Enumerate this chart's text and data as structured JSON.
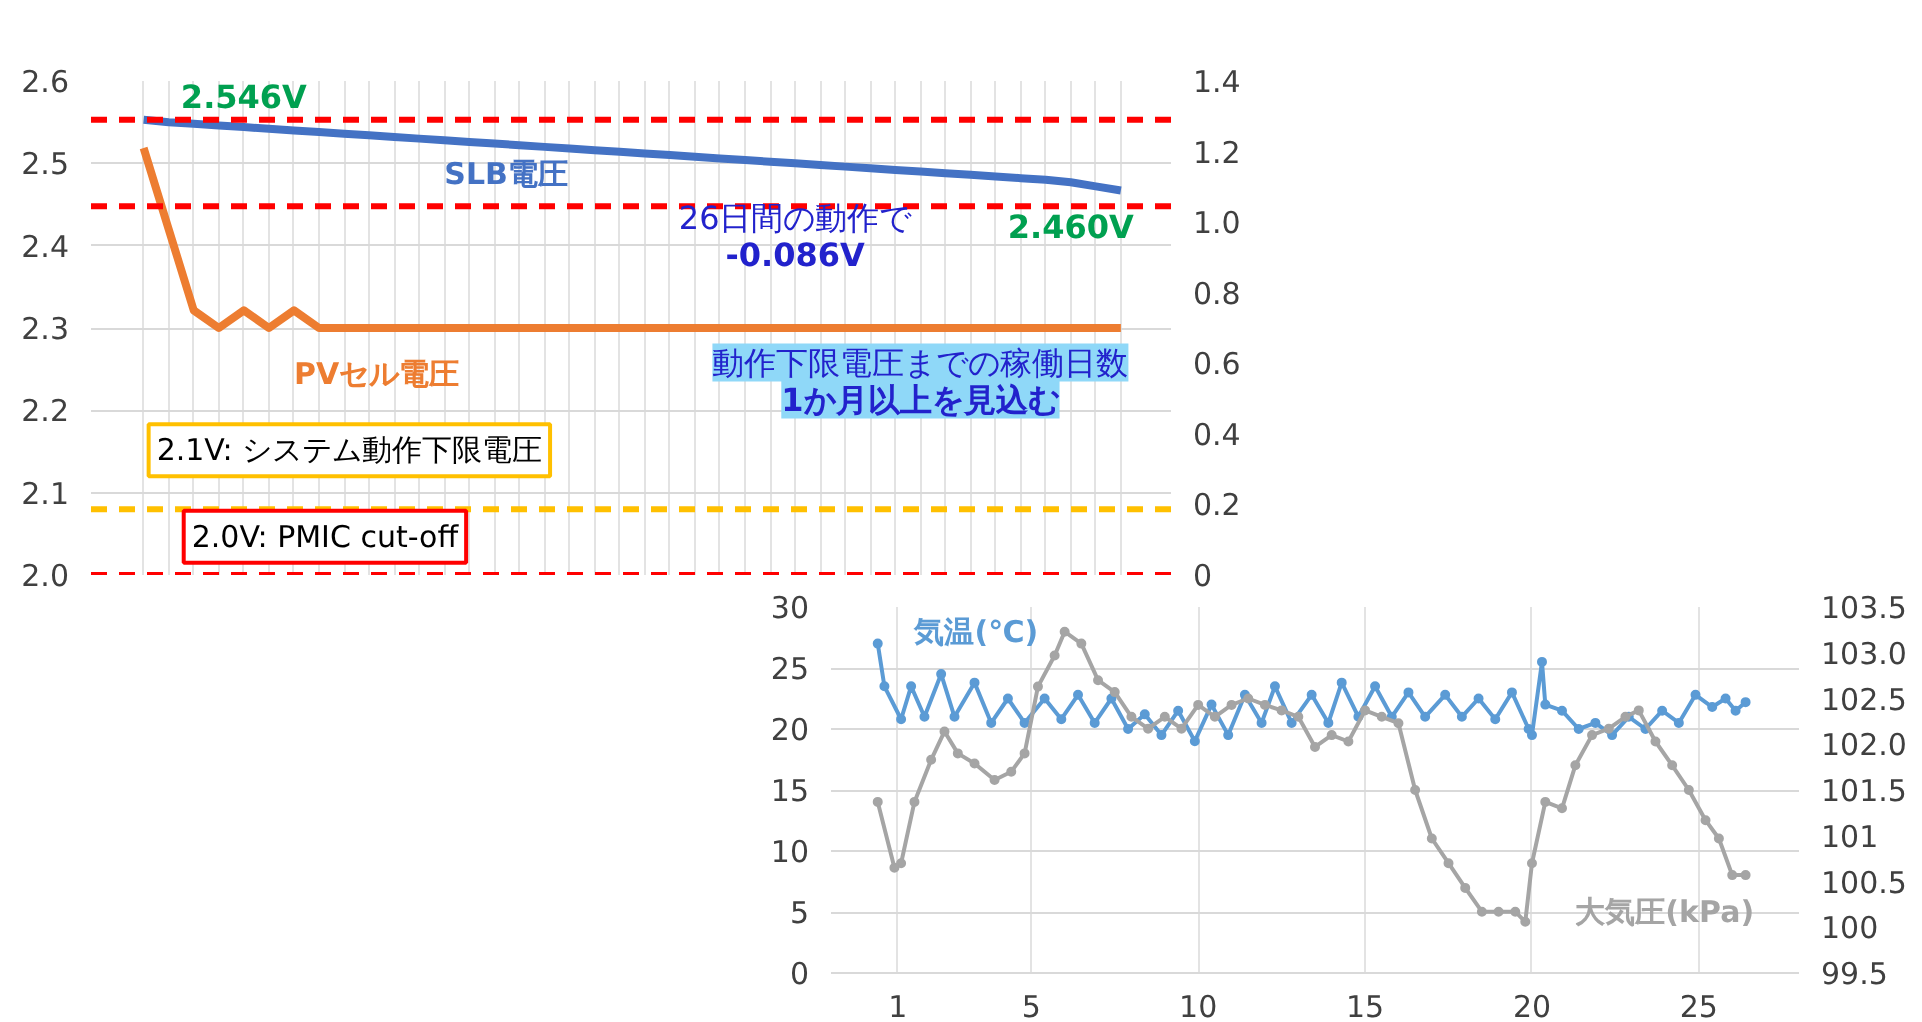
{
  "chart_data": [
    {
      "type": "line",
      "categories": [
        null,
        null,
        null,
        null,
        null,
        null,
        null,
        null,
        null,
        null,
        null,
        null,
        null,
        null,
        null,
        null,
        null,
        null,
        null,
        null,
        null,
        null,
        null,
        null,
        null,
        null,
        null,
        null,
        null,
        null,
        null,
        null,
        null,
        null,
        null,
        null,
        null,
        null,
        null,
        null
      ],
      "series": [
        {
          "name": "SLB電圧",
          "color": "#4472c4",
          "values": [
            2.553,
            2.55,
            2.548,
            2.546,
            2.544,
            2.542,
            2.54,
            2.538,
            2.536,
            2.534,
            2.532,
            2.53,
            2.528,
            2.526,
            2.524,
            2.522,
            2.52,
            2.518,
            2.516,
            2.514,
            2.512,
            2.51,
            2.508,
            2.506,
            2.504,
            2.502,
            2.5,
            2.498,
            2.496,
            2.494,
            2.492,
            2.49,
            2.488,
            2.486,
            2.484,
            2.482,
            2.48,
            2.477,
            2.472,
            2.467
          ]
        },
        {
          "name": "PVセル電圧",
          "color": "#ed7d31",
          "axis": "y2",
          "values": [
            1.21,
            0.98,
            0.75,
            0.7,
            0.75,
            0.7,
            0.75,
            0.7,
            0.7,
            0.7,
            0.7,
            0.7,
            0.7,
            0.7,
            0.7,
            0.7,
            0.7,
            0.7,
            0.7,
            0.7,
            0.7,
            0.7,
            0.7,
            0.7,
            0.7,
            0.7,
            0.7,
            0.7,
            0.7,
            0.7,
            0.7,
            0.7,
            0.7,
            0.7,
            0.7,
            0.7,
            0.7,
            0.7,
            0.7,
            0.7
          ]
        }
      ],
      "ylim": [
        2.0,
        2.6
      ],
      "yticks": [
        {
          "value": 2.0,
          "label": "2.0"
        },
        2.1,
        2.2,
        2.3,
        2.4,
        2.5,
        2.6
      ],
      "y2lim": [
        0,
        1.4
      ],
      "y2ticks": [
        0,
        0.2,
        0.4,
        0.6,
        0.8,
        {
          "value": 1.0,
          "label": "1.0"
        },
        1.2,
        1.4
      ],
      "ref_lines": [
        {
          "axis": "y",
          "value": 2.553,
          "color": "#ff0000",
          "line_style": "dashed"
        },
        {
          "axis": "y",
          "value": 2.448,
          "color": "#ff0000",
          "line_style": "dashed"
        },
        {
          "axis": "y",
          "value": 2.08,
          "label": "2.1V: システム動作下限電圧",
          "color": "#ffc000",
          "line_style": "dashed"
        },
        {
          "axis": "y",
          "value": 2.0,
          "label": "2.0V: PMIC cut-off",
          "color": "#ff0000",
          "line_style": "dashed"
        }
      ],
      "annotations": [
        "2.546V",
        "2.460V",
        "26日間の動作で\n-0.086V",
        "動作下限電圧までの稼働日数\n1か月以上を見込む"
      ],
      "grid": true,
      "tick_labels": "y",
      "marker": "none",
      "line_style": "solid"
    },
    {
      "type": "line",
      "series": [
        {
          "name": "気温(℃)",
          "color": "#5b9bd5",
          "x": [
            0.4,
            0.6,
            1.1,
            1.4,
            1.8,
            2.3,
            2.7,
            3.3,
            3.8,
            4.3,
            4.8,
            5.4,
            5.9,
            6.4,
            6.9,
            7.4,
            7.9,
            8.4,
            8.9,
            9.4,
            9.9,
            10.4,
            10.9,
            11.4,
            11.9,
            12.3,
            12.8,
            13.4,
            13.9,
            14.3,
            14.8,
            15.3,
            15.8,
            16.3,
            16.8,
            17.4,
            17.9,
            18.4,
            18.9,
            19.4,
            19.9,
            20.0,
            20.3,
            20.4,
            20.9,
            21.4,
            21.9,
            22.4,
            22.9,
            23.4,
            23.9,
            24.4,
            24.9,
            25.4,
            25.8,
            26.1,
            26.4
          ],
          "values": [
            27.0,
            23.5,
            20.8,
            23.5,
            21.0,
            24.5,
            21.0,
            23.8,
            20.5,
            22.5,
            20.5,
            22.5,
            20.8,
            22.8,
            20.5,
            22.5,
            20.0,
            21.2,
            19.5,
            21.5,
            19.0,
            22.0,
            19.5,
            22.8,
            20.5,
            23.5,
            20.5,
            22.8,
            20.5,
            23.8,
            21.0,
            23.5,
            21.0,
            23.0,
            21.0,
            22.8,
            21.0,
            22.5,
            20.8,
            23.0,
            20.0,
            19.5,
            25.5,
            22.0,
            21.5,
            20.0,
            20.5,
            19.5,
            21.0,
            20.0,
            21.5,
            20.5,
            22.8,
            21.8,
            22.5,
            21.5,
            22.2
          ]
        },
        {
          "name": "大気圧(kPa)",
          "color": "#a5a5a5",
          "axis": "y2",
          "x": [
            0.4,
            0.9,
            1.1,
            1.5,
            2.0,
            2.4,
            2.8,
            3.3,
            3.9,
            4.4,
            4.8,
            5.2,
            5.7,
            6.0,
            6.5,
            7.0,
            7.5,
            8.0,
            8.5,
            9.0,
            9.5,
            10.0,
            10.5,
            11.0,
            11.5,
            12.0,
            12.5,
            13.0,
            13.5,
            14.0,
            14.5,
            15.0,
            15.5,
            16.0,
            16.5,
            17.0,
            17.5,
            18.0,
            18.5,
            19.0,
            19.5,
            19.8,
            20.0,
            20.4,
            20.9,
            21.3,
            21.8,
            22.3,
            22.8,
            23.2,
            23.7,
            24.2,
            24.7,
            25.2,
            25.6,
            26.0,
            26.4
          ],
          "values": [
            101.37,
            100.65,
            100.7,
            101.37,
            101.83,
            102.14,
            101.9,
            101.79,
            101.61,
            101.7,
            101.9,
            102.63,
            102.97,
            103.23,
            103.1,
            102.7,
            102.57,
            102.3,
            102.17,
            102.3,
            102.17,
            102.43,
            102.3,
            102.43,
            102.5,
            102.43,
            102.37,
            102.3,
            101.97,
            102.1,
            102.03,
            102.37,
            102.3,
            102.23,
            101.5,
            100.97,
            100.7,
            100.43,
            100.17,
            100.17,
            100.17,
            100.06,
            100.7,
            101.37,
            101.3,
            101.77,
            102.1,
            102.17,
            102.3,
            102.37,
            102.03,
            101.77,
            101.5,
            101.17,
            100.97,
            100.57,
            100.57
          ]
        }
      ],
      "xlim": [
        -1,
        28
      ],
      "xticks": [
        1,
        5,
        10,
        15,
        20,
        25
      ],
      "ylim": [
        0,
        30
      ],
      "yticks": [
        0,
        5,
        10,
        15,
        20,
        25,
        30
      ],
      "y2lim": [
        99.5,
        103.5
      ],
      "y2ticks": [
        99.5,
        100,
        100.5,
        101,
        101.5,
        {
          "value": 102,
          "label": "102.0"
        },
        102.5,
        {
          "value": 103,
          "label": "103.0"
        },
        103.5
      ],
      "grid": true,
      "marker": "circle",
      "line_style": "solid"
    }
  ]
}
